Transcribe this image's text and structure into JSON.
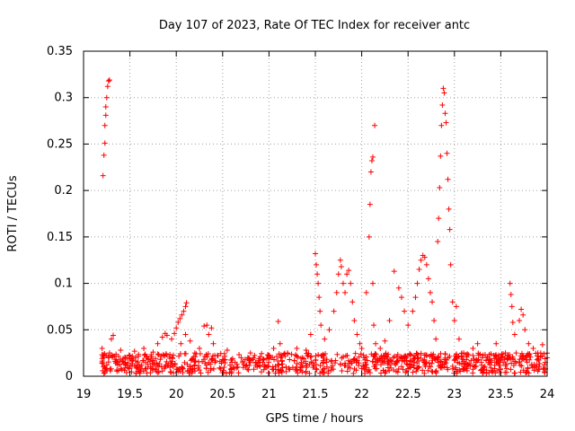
{
  "chart_data": {
    "type": "scatter",
    "title": "Day 107 of 2023, Rate Of TEC Index for receiver antc",
    "xlabel": "GPS time / hours",
    "ylabel": "ROTI / TECUs",
    "xlim": [
      19,
      24
    ],
    "ylim": [
      0,
      0.35
    ],
    "xticks": [
      "19",
      "19.5",
      "20",
      "20.5",
      "21",
      "21.5",
      "22",
      "22.5",
      "23",
      "23.5",
      "24"
    ],
    "yticks": [
      "0",
      "0.05",
      "0.1",
      "0.15",
      "0.2",
      "0.25",
      "0.3",
      "0.35"
    ],
    "grid": true,
    "marker": "+",
    "marker_color": "#ff0000",
    "series": [
      {
        "name": "ROTI",
        "points": [
          [
            19.21,
            0.216
          ],
          [
            19.22,
            0.238
          ],
          [
            19.23,
            0.251
          ],
          [
            19.23,
            0.27
          ],
          [
            19.24,
            0.281
          ],
          [
            19.24,
            0.29
          ],
          [
            19.25,
            0.3
          ],
          [
            19.26,
            0.312
          ],
          [
            19.27,
            0.318
          ],
          [
            19.28,
            0.319
          ],
          [
            19.2,
            0.03
          ],
          [
            19.22,
            0.02
          ],
          [
            19.25,
            0.012
          ],
          [
            19.28,
            0.025
          ],
          [
            19.3,
            0.04
          ],
          [
            19.32,
            0.044
          ],
          [
            19.35,
            0.018
          ],
          [
            19.4,
            0.028
          ],
          [
            19.45,
            0.015
          ],
          [
            19.5,
            0.022
          ],
          [
            19.55,
            0.027
          ],
          [
            19.6,
            0.012
          ],
          [
            19.65,
            0.03
          ],
          [
            19.7,
            0.018
          ],
          [
            19.75,
            0.026
          ],
          [
            19.8,
            0.035
          ],
          [
            19.85,
            0.042
          ],
          [
            19.88,
            0.046
          ],
          [
            19.9,
            0.044
          ],
          [
            19.95,
            0.04
          ],
          [
            19.98,
            0.046
          ],
          [
            20.0,
            0.052
          ],
          [
            20.02,
            0.058
          ],
          [
            20.04,
            0.062
          ],
          [
            20.06,
            0.066
          ],
          [
            20.08,
            0.07
          ],
          [
            20.1,
            0.075
          ],
          [
            20.11,
            0.079
          ],
          [
            20.05,
            0.035
          ],
          [
            20.1,
            0.045
          ],
          [
            20.15,
            0.038
          ],
          [
            20.2,
            0.025
          ],
          [
            20.25,
            0.03
          ],
          [
            20.3,
            0.054
          ],
          [
            20.33,
            0.055
          ],
          [
            20.35,
            0.045
          ],
          [
            20.38,
            0.052
          ],
          [
            20.4,
            0.035
          ],
          [
            20.45,
            0.022
          ],
          [
            20.5,
            0.018
          ],
          [
            20.55,
            0.028
          ],
          [
            20.6,
            0.015
          ],
          [
            20.7,
            0.02
          ],
          [
            20.8,
            0.025
          ],
          [
            20.9,
            0.015
          ],
          [
            21.0,
            0.02
          ],
          [
            21.05,
            0.03
          ],
          [
            21.1,
            0.059
          ],
          [
            21.12,
            0.035
          ],
          [
            21.2,
            0.025
          ],
          [
            21.3,
            0.03
          ],
          [
            21.4,
            0.028
          ],
          [
            21.45,
            0.045
          ],
          [
            21.5,
            0.132
          ],
          [
            21.51,
            0.12
          ],
          [
            21.52,
            0.11
          ],
          [
            21.53,
            0.1
          ],
          [
            21.54,
            0.085
          ],
          [
            21.55,
            0.07
          ],
          [
            21.56,
            0.055
          ],
          [
            21.6,
            0.04
          ],
          [
            21.65,
            0.05
          ],
          [
            21.7,
            0.07
          ],
          [
            21.73,
            0.09
          ],
          [
            21.75,
            0.11
          ],
          [
            21.77,
            0.125
          ],
          [
            21.78,
            0.118
          ],
          [
            21.8,
            0.1
          ],
          [
            21.82,
            0.09
          ],
          [
            21.84,
            0.11
          ],
          [
            21.86,
            0.114
          ],
          [
            21.88,
            0.1
          ],
          [
            21.9,
            0.08
          ],
          [
            21.92,
            0.06
          ],
          [
            21.95,
            0.045
          ],
          [
            21.98,
            0.035
          ],
          [
            22.0,
            0.03
          ],
          [
            22.05,
            0.09
          ],
          [
            22.08,
            0.15
          ],
          [
            22.09,
            0.185
          ],
          [
            22.1,
            0.22
          ],
          [
            22.11,
            0.232
          ],
          [
            22.12,
            0.236
          ],
          [
            22.14,
            0.27
          ],
          [
            22.12,
            0.1
          ],
          [
            22.13,
            0.055
          ],
          [
            22.15,
            0.035
          ],
          [
            22.2,
            0.03
          ],
          [
            22.25,
            0.038
          ],
          [
            22.3,
            0.06
          ],
          [
            22.35,
            0.113
          ],
          [
            22.4,
            0.095
          ],
          [
            22.43,
            0.085
          ],
          [
            22.46,
            0.07
          ],
          [
            22.5,
            0.055
          ],
          [
            22.55,
            0.07
          ],
          [
            22.58,
            0.085
          ],
          [
            22.6,
            0.1
          ],
          [
            22.62,
            0.115
          ],
          [
            22.64,
            0.125
          ],
          [
            22.66,
            0.13
          ],
          [
            22.68,
            0.128
          ],
          [
            22.7,
            0.12
          ],
          [
            22.72,
            0.105
          ],
          [
            22.74,
            0.09
          ],
          [
            22.76,
            0.08
          ],
          [
            22.78,
            0.06
          ],
          [
            22.8,
            0.04
          ],
          [
            22.82,
            0.145
          ],
          [
            22.83,
            0.17
          ],
          [
            22.84,
            0.203
          ],
          [
            22.85,
            0.237
          ],
          [
            22.86,
            0.27
          ],
          [
            22.87,
            0.292
          ],
          [
            22.88,
            0.31
          ],
          [
            22.89,
            0.305
          ],
          [
            22.9,
            0.283
          ],
          [
            22.91,
            0.273
          ],
          [
            22.92,
            0.24
          ],
          [
            22.93,
            0.212
          ],
          [
            22.94,
            0.18
          ],
          [
            22.95,
            0.158
          ],
          [
            22.96,
            0.12
          ],
          [
            22.98,
            0.08
          ],
          [
            23.0,
            0.06
          ],
          [
            23.02,
            0.075
          ],
          [
            23.05,
            0.04
          ],
          [
            23.1,
            0.025
          ],
          [
            23.2,
            0.03
          ],
          [
            23.25,
            0.035
          ],
          [
            23.3,
            0.02
          ],
          [
            23.4,
            0.015
          ],
          [
            23.45,
            0.035
          ],
          [
            23.5,
            0.02
          ],
          [
            23.55,
            0.025
          ],
          [
            23.6,
            0.1
          ],
          [
            23.61,
            0.088
          ],
          [
            23.62,
            0.075
          ],
          [
            23.63,
            0.058
          ],
          [
            23.65,
            0.045
          ],
          [
            23.7,
            0.06
          ],
          [
            23.72,
            0.072
          ],
          [
            23.74,
            0.066
          ],
          [
            23.76,
            0.05
          ],
          [
            23.8,
            0.035
          ],
          [
            23.85,
            0.03
          ],
          [
            23.9,
            0.025
          ],
          [
            23.95,
            0.034
          ],
          [
            24.0,
            0.02
          ]
        ]
      }
    ],
    "baseline_band": {
      "x_range": [
        19.2,
        24.0
      ],
      "y_range": [
        0.003,
        0.025
      ]
    }
  }
}
